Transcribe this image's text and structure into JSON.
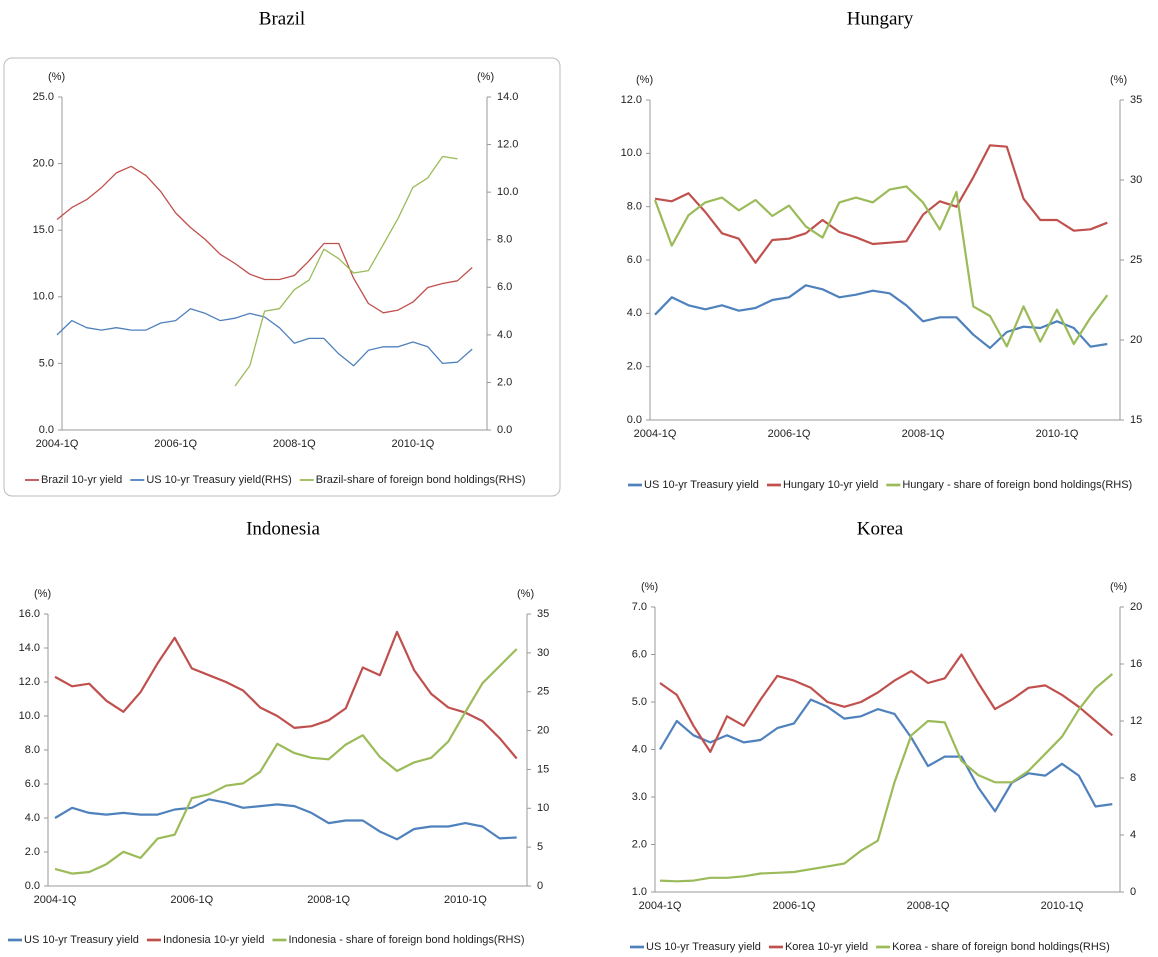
{
  "chart_data": [
    {
      "type": "line",
      "title": "Brazil",
      "y_label": "(%)",
      "y2_label": "(%)",
      "categories": [
        "2004-1Q",
        null,
        null,
        null,
        null,
        null,
        null,
        null,
        "2006-1Q",
        null,
        null,
        null,
        null,
        null,
        null,
        null,
        "2008-1Q",
        null,
        null,
        null,
        null,
        null,
        null,
        null,
        "2010-1Q",
        null,
        null,
        null,
        null
      ],
      "ylim": [
        0,
        25
      ],
      "yticks": [
        {
          "value": 0,
          "label": "0.0"
        },
        {
          "value": 5,
          "label": "5.0"
        },
        {
          "value": 10,
          "label": "10.0"
        },
        {
          "value": 15,
          "label": "15.0"
        },
        {
          "value": 20,
          "label": "20.0"
        },
        {
          "value": 25,
          "label": "25.0"
        }
      ],
      "y2lim": [
        0,
        14
      ],
      "y2ticks": [
        {
          "value": 0,
          "label": "0.0"
        },
        {
          "value": 2,
          "label": "2.0"
        },
        {
          "value": 4,
          "label": "4.0"
        },
        {
          "value": 6,
          "label": "6.0"
        },
        {
          "value": 8,
          "label": "8.0"
        },
        {
          "value": 10,
          "label": "10.0"
        },
        {
          "value": 12,
          "label": "12.0"
        },
        {
          "value": 14,
          "label": "14.0"
        }
      ],
      "grid": false,
      "legend": "bottom",
      "series": [
        {
          "name": "Brazil 10-yr yield",
          "color": "#c0504d",
          "values": [
            15.8,
            16.7,
            17.3,
            18.2,
            19.3,
            19.8,
            19.1,
            17.9,
            16.3,
            15.2,
            14.3,
            13.2,
            12.5,
            11.7,
            11.3,
            11.3,
            11.6,
            12.7,
            14.0,
            14.0,
            11.4,
            9.5,
            8.8,
            9.0,
            9.6,
            10.7,
            11.0,
            11.2,
            12.2
          ]
        },
        {
          "name": "US 10-yr Treasury yield(RHS)",
          "color": "#4f81bd",
          "axis": "y2",
          "values": [
            4.0,
            4.6,
            4.3,
            4.2,
            4.3,
            4.2,
            4.2,
            4.5,
            4.6,
            5.1,
            4.9,
            4.6,
            4.7,
            4.9,
            4.75,
            4.3,
            3.65,
            3.85,
            3.85,
            3.2,
            2.7,
            3.35,
            3.5,
            3.5,
            3.7,
            3.5,
            2.8,
            2.85,
            3.4
          ]
        },
        {
          "name": "Brazil-share of foreign bond holdings(RHS)",
          "color": "#9bbb59",
          "axis": "y2",
          "values": [
            null,
            null,
            null,
            null,
            null,
            null,
            null,
            null,
            null,
            null,
            null,
            null,
            1.85,
            2.7,
            5.0,
            5.1,
            5.9,
            6.3,
            7.6,
            7.2,
            6.6,
            6.7,
            7.8,
            8.9,
            10.2,
            10.6,
            11.5,
            11.4,
            null
          ]
        }
      ]
    },
    {
      "type": "line",
      "title": "Hungary",
      "y_label": "(%)",
      "y2_label": "(%)",
      "categories": [
        "2004-1Q",
        null,
        null,
        null,
        null,
        null,
        null,
        null,
        "2006-1Q",
        null,
        null,
        null,
        null,
        null,
        null,
        null,
        "2008-1Q",
        null,
        null,
        null,
        null,
        null,
        null,
        null,
        "2010-1Q",
        null,
        null,
        null
      ],
      "ylim": [
        0,
        12
      ],
      "yticks": [
        {
          "value": 0,
          "label": "0.0"
        },
        {
          "value": 2,
          "label": "2.0"
        },
        {
          "value": 4,
          "label": "4.0"
        },
        {
          "value": 6,
          "label": "6.0"
        },
        {
          "value": 8,
          "label": "8.0"
        },
        {
          "value": 10,
          "label": "10.0"
        },
        {
          "value": 12,
          "label": "12.0"
        }
      ],
      "y2lim": [
        15,
        35
      ],
      "y2ticks": [
        15,
        20,
        25,
        30,
        35
      ],
      "grid": false,
      "legend": "bottom",
      "series": [
        {
          "name": "US 10-yr Treasury yield",
          "color": "#4f81bd",
          "values": [
            3.95,
            4.6,
            4.3,
            4.15,
            4.3,
            4.1,
            4.2,
            4.5,
            4.6,
            5.05,
            4.9,
            4.6,
            4.7,
            4.85,
            4.75,
            4.3,
            3.7,
            3.85,
            3.85,
            3.2,
            2.7,
            3.3,
            3.5,
            3.45,
            3.7,
            3.45,
            2.75,
            2.85
          ]
        },
        {
          "name": "Hungary 10-yr yield",
          "color": "#c0504d",
          "values": [
            8.3,
            8.2,
            8.5,
            7.8,
            7.0,
            6.8,
            5.9,
            6.75,
            6.8,
            7.0,
            7.5,
            7.05,
            6.85,
            6.6,
            6.65,
            6.7,
            7.7,
            8.2,
            8.0,
            9.1,
            10.3,
            10.25,
            8.3,
            7.5,
            7.5,
            7.1,
            7.15,
            7.4
          ]
        },
        {
          "name": "Hungary - share of foreign bond holdings(RHS)",
          "color": "#9bbb59",
          "axis": "y2",
          "values": [
            28.75,
            25.9,
            27.8,
            28.6,
            28.9,
            28.1,
            28.75,
            27.75,
            28.4,
            27.1,
            26.4,
            28.6,
            28.9,
            28.6,
            29.4,
            29.6,
            28.6,
            26.9,
            29.25,
            22.1,
            21.5,
            19.6,
            22.1,
            19.9,
            21.9,
            19.75,
            21.4,
            22.8
          ]
        }
      ]
    },
    {
      "type": "line",
      "title": "Indonesia",
      "y_label": "(%)",
      "y2_label": "(%)",
      "categories": [
        "2004-1Q",
        null,
        null,
        null,
        null,
        null,
        null,
        null,
        "2006-1Q",
        null,
        null,
        null,
        null,
        null,
        null,
        null,
        "2008-1Q",
        null,
        null,
        null,
        null,
        null,
        null,
        null,
        "2010-1Q",
        null,
        null,
        null
      ],
      "ylim": [
        0,
        16
      ],
      "yticks": [
        {
          "value": 0,
          "label": "0.0"
        },
        {
          "value": 2,
          "label": "2.0"
        },
        {
          "value": 4,
          "label": "4.0"
        },
        {
          "value": 6,
          "label": "6.0"
        },
        {
          "value": 8,
          "label": "8.0"
        },
        {
          "value": 10,
          "label": "10.0"
        },
        {
          "value": 12,
          "label": "12.0"
        },
        {
          "value": 14,
          "label": "14.0"
        },
        {
          "value": 16,
          "label": "16.0"
        }
      ],
      "y2lim": [
        0,
        35
      ],
      "y2ticks": [
        0,
        5,
        10,
        15,
        20,
        25,
        30,
        35
      ],
      "grid": false,
      "legend": "bottom",
      "series": [
        {
          "name": "US 10-yr Treasury yield",
          "color": "#4f81bd",
          "values": [
            4.0,
            4.6,
            4.3,
            4.2,
            4.3,
            4.2,
            4.2,
            4.5,
            4.6,
            5.1,
            4.9,
            4.6,
            4.7,
            4.8,
            4.7,
            4.3,
            3.7,
            3.85,
            3.85,
            3.2,
            2.75,
            3.35,
            3.5,
            3.5,
            3.7,
            3.5,
            2.8,
            2.85
          ]
        },
        {
          "name": "Indonesia 10-yr yield",
          "color": "#c0504d",
          "values": [
            12.3,
            11.75,
            11.9,
            10.9,
            10.25,
            11.4,
            13.1,
            14.6,
            12.8,
            12.4,
            12.0,
            11.5,
            10.5,
            10.0,
            9.3,
            9.4,
            9.75,
            10.45,
            12.85,
            12.4,
            14.95,
            12.7,
            11.3,
            10.5,
            10.2,
            9.7,
            8.7,
            7.5
          ]
        },
        {
          "name": "Indonesia - share of foreign bond holdings(RHS)",
          "color": "#9bbb59",
          "axis": "y2",
          "values": [
            2.2,
            1.6,
            1.8,
            2.8,
            4.4,
            3.6,
            6.1,
            6.6,
            11.3,
            11.8,
            12.9,
            13.2,
            14.7,
            18.3,
            17.1,
            16.5,
            16.3,
            18.2,
            19.4,
            16.6,
            14.8,
            15.9,
            16.5,
            18.6,
            22.4,
            26.1,
            28.3,
            30.5
          ]
        }
      ]
    },
    {
      "type": "line",
      "title": "Korea",
      "y_label": "(%)",
      "y2_label": "(%)",
      "categories": [
        "2004-1Q",
        null,
        null,
        null,
        null,
        null,
        null,
        null,
        "2006-1Q",
        null,
        null,
        null,
        null,
        null,
        null,
        null,
        "2008-1Q",
        null,
        null,
        null,
        null,
        null,
        null,
        null,
        "2010-1Q",
        null,
        null,
        null
      ],
      "ylim": [
        1,
        7
      ],
      "yticks": [
        {
          "value": 1,
          "label": "1.0"
        },
        {
          "value": 2,
          "label": "2.0"
        },
        {
          "value": 3,
          "label": "3.0"
        },
        {
          "value": 4,
          "label": "4.0"
        },
        {
          "value": 5,
          "label": "5.0"
        },
        {
          "value": 6,
          "label": "6.0"
        },
        {
          "value": 7,
          "label": "7.0"
        }
      ],
      "y2lim": [
        0,
        20
      ],
      "y2ticks": [
        0,
        4,
        8,
        12,
        16,
        20
      ],
      "grid": false,
      "legend": "bottom",
      "series": [
        {
          "name": "US 10-yr Treasury yield",
          "color": "#4f81bd",
          "values": [
            4.0,
            4.6,
            4.3,
            4.15,
            4.3,
            4.15,
            4.2,
            4.45,
            4.55,
            5.05,
            4.9,
            4.65,
            4.7,
            4.85,
            4.75,
            4.25,
            3.65,
            3.85,
            3.85,
            3.2,
            2.7,
            3.3,
            3.5,
            3.45,
            3.7,
            3.45,
            2.8,
            2.85
          ]
        },
        {
          "name": "Korea 10-yr yield",
          "color": "#c0504d",
          "values": [
            5.4,
            5.15,
            4.5,
            3.95,
            4.7,
            4.5,
            5.05,
            5.55,
            5.45,
            5.3,
            5.0,
            4.9,
            5.0,
            5.2,
            5.45,
            5.65,
            5.4,
            5.5,
            6.0,
            5.4,
            4.85,
            5.05,
            5.3,
            5.35,
            5.15,
            4.9,
            4.6,
            4.3
          ]
        },
        {
          "name": "Korea - share of foreign bond holdings(RHS)",
          "color": "#9bbb59",
          "axis": "y2",
          "values": [
            0.8,
            0.75,
            0.8,
            1.0,
            1.0,
            1.1,
            1.3,
            1.35,
            1.4,
            1.6,
            1.8,
            2.0,
            2.9,
            3.6,
            7.7,
            11.0,
            12.0,
            11.9,
            9.2,
            8.2,
            7.7,
            7.7,
            8.5,
            9.7,
            10.9,
            12.8,
            14.3,
            15.3
          ]
        }
      ]
    }
  ]
}
